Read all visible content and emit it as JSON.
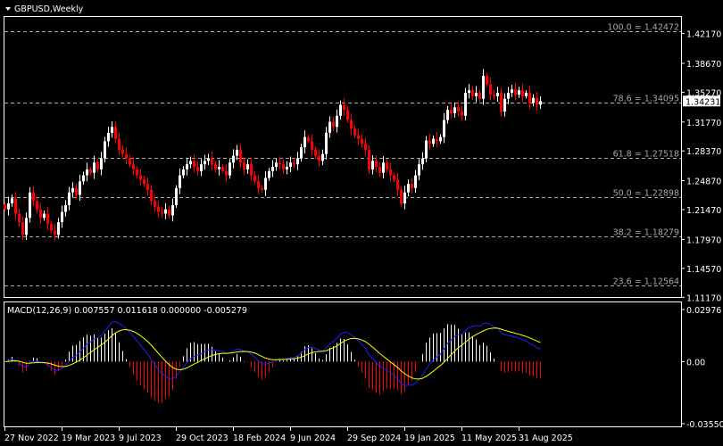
{
  "header": {
    "menu_icon": "triangle-down-icon",
    "title": "GBPUSD,Weekly"
  },
  "colors": {
    "background": "#000000",
    "bull": "#ffffff",
    "bear": "#ff0000",
    "macd_line": "#1e1eff",
    "signal_line": "#ffff00",
    "grid_fib": "#a8a8a8",
    "axis": "#ffffff"
  },
  "chart_data": [
    {
      "type": "candlestick",
      "title": "GBPUSD,Weekly",
      "timeframe": "Weekly",
      "ylim": [
        1.112,
        1.4422
      ],
      "y_ticks": [
        "1.42170",
        "1.38670",
        "1.35270",
        "1.31770",
        "1.28370",
        "1.24870",
        "1.21470",
        "1.17970",
        "1.14570",
        "1.11170"
      ],
      "current_price": "1.34231",
      "x_tick_labels": [
        "27 Nov 2022",
        "19 Mar 2023",
        "9 Jul 2023",
        "29 Oct 2023",
        "18 Feb 2024",
        "9 Jun 2024",
        "29 Sep 2024",
        "19 Jan 2025",
        "11 May 2025",
        "31 Aug 2025"
      ],
      "fibonacci": [
        {
          "level": "100.0",
          "price": 1.42472,
          "label": "100.0 = 1.42472"
        },
        {
          "level": "78.6",
          "price": 1.34095,
          "label": "78.6 = 1.34095"
        },
        {
          "level": "61.8",
          "price": 1.27518,
          "label": "61.8 = 1.27518"
        },
        {
          "level": "50.0",
          "price": 1.22898,
          "label": "50.0 = 1.22898"
        },
        {
          "level": "38.2",
          "price": 1.18279,
          "label": "38.2 = 1.18279"
        },
        {
          "level": "23.6",
          "price": 1.12564,
          "label": "23.6 = 1.12564"
        }
      ],
      "closes": [
        1.215,
        1.222,
        1.228,
        1.21,
        1.2,
        1.185,
        1.205,
        1.235,
        1.225,
        1.215,
        1.205,
        1.21,
        1.198,
        1.19,
        1.185,
        1.2,
        1.212,
        1.22,
        1.235,
        1.24,
        1.232,
        1.248,
        1.255,
        1.262,
        1.258,
        1.27,
        1.262,
        1.275,
        1.295,
        1.305,
        1.312,
        1.298,
        1.285,
        1.28,
        1.275,
        1.268,
        1.262,
        1.255,
        1.25,
        1.245,
        1.238,
        1.225,
        1.218,
        1.212,
        1.21,
        1.215,
        1.208,
        1.22,
        1.24,
        1.255,
        1.262,
        1.268,
        1.272,
        1.265,
        1.26,
        1.268,
        1.272,
        1.275,
        1.268,
        1.262,
        1.265,
        1.26,
        1.255,
        1.27,
        1.278,
        1.285,
        1.27,
        1.262,
        1.268,
        1.255,
        1.248,
        1.24,
        1.238,
        1.252,
        1.26,
        1.265,
        1.27,
        1.268,
        1.262,
        1.265,
        1.27,
        1.268,
        1.275,
        1.288,
        1.3,
        1.295,
        1.285,
        1.278,
        1.272,
        1.28,
        1.305,
        1.318,
        1.312,
        1.325,
        1.338,
        1.332,
        1.32,
        1.31,
        1.302,
        1.298,
        1.292,
        1.285,
        1.262,
        1.272,
        1.265,
        1.258,
        1.27,
        1.262,
        1.255,
        1.25,
        1.238,
        1.222,
        1.235,
        1.245,
        1.24,
        1.255,
        1.268,
        1.275,
        1.296,
        1.292,
        1.298,
        1.295,
        1.3,
        1.32,
        1.332,
        1.328,
        1.335,
        1.33,
        1.325,
        1.352,
        1.355,
        1.348,
        1.352,
        1.345,
        1.372,
        1.362,
        1.35,
        1.348,
        1.352,
        1.33,
        1.345,
        1.352,
        1.356,
        1.35,
        1.355,
        1.348,
        1.352,
        1.34,
        1.346,
        1.338,
        1.34231
      ]
    },
    {
      "type": "macd",
      "legend": "MACD(12,26,9) 0.007557 0.011618 0.000000 -0.005279",
      "params": [
        12,
        26,
        9
      ],
      "ylim": [
        -0.035501,
        0.02976
      ],
      "y_ticks": [
        "0.02976",
        "0.00",
        "-0.035501"
      ]
    }
  ]
}
